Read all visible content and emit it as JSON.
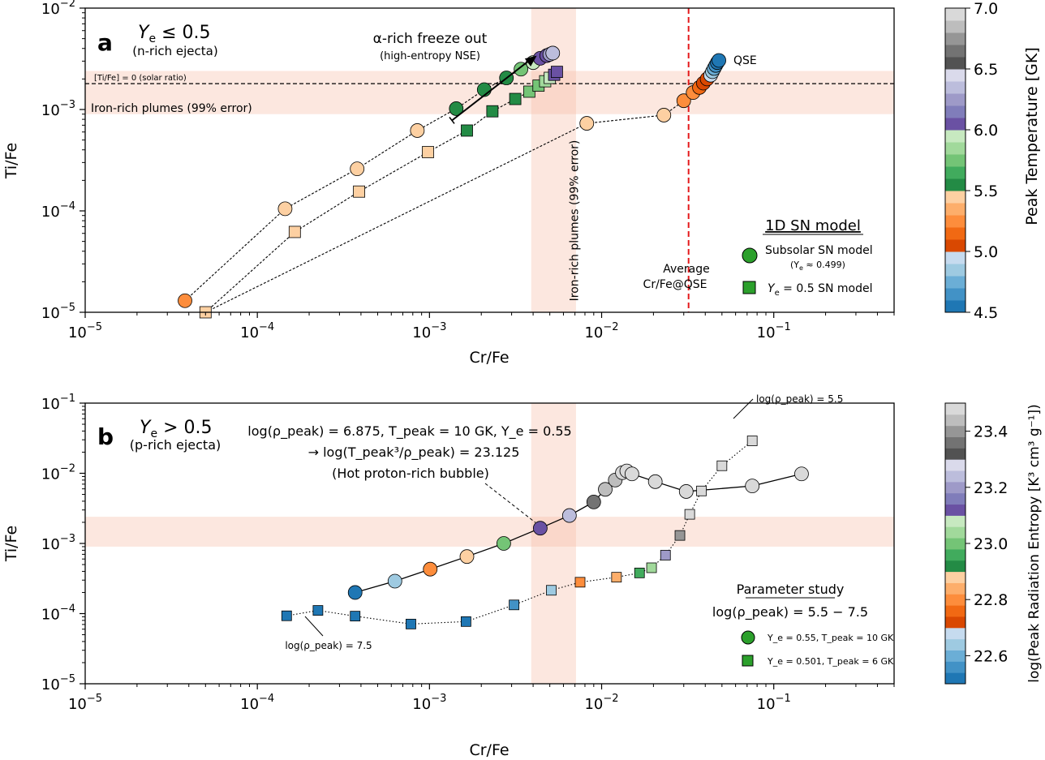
{
  "colors": {
    "band": "#f7b9a4",
    "red": "#e41a1c",
    "sn_green": "#2ca02c",
    "temp_scale": [
      "#1f77b4",
      "#4292c6",
      "#6baed6",
      "#9ecae1",
      "#c6dbef",
      "#d94801",
      "#f16913",
      "#fd8d3c",
      "#fdae6b",
      "#fdd0a2",
      "#238b45",
      "#41ab5d",
      "#74c476",
      "#a1d99b",
      "#c7e9c0",
      "#6a51a3",
      "#807dba",
      "#9e9ac8",
      "#bcbddc",
      "#dadaeb",
      "#525252",
      "#737373",
      "#969696",
      "#bdbdbd",
      "#d9d9d9"
    ],
    "entropy_scale": [
      "#1f77b4",
      "#4292c6",
      "#6baed6",
      "#9ecae1",
      "#c6dbef",
      "#d94801",
      "#f16913",
      "#fd8d3c",
      "#fdae6b",
      "#fdd0a2",
      "#238b45",
      "#41ab5d",
      "#74c476",
      "#a1d99b",
      "#c7e9c0",
      "#6a51a3",
      "#807dba",
      "#9e9ac8",
      "#bcbddc",
      "#dadaeb",
      "#525252",
      "#737373",
      "#969696",
      "#bdbdbd",
      "#d9d9d9"
    ]
  },
  "chart_data": [
    {
      "type": "scatter",
      "panel_label": "a",
      "xlabel": "Cr/Fe",
      "ylabel": "Ti/Fe",
      "xlim": [
        1e-05,
        0.5
      ],
      "ylim": [
        1e-05,
        0.01
      ],
      "x_ticks": [
        "10^-5",
        "10^-4",
        "10^-3",
        "10^-2",
        "10^-1"
      ],
      "y_ticks": [
        "10^-5",
        "10^-4",
        "10^-3",
        "10^-2"
      ],
      "ye_label": "Y",
      "ye_sub": "e",
      "ye_relation": " ≤ 0.5",
      "ejecta_label": "(n-rich ejecta)",
      "freeze_title": "α-rich freeze out",
      "freeze_sub": "(high-entropy NSE)",
      "freeze_arrow": {
        "x_from": 0.00135,
        "y_from": 0.00078,
        "x_to": 0.0042,
        "y_to": 0.0034
      },
      "solar_label": "[Ti/Fe] = 0 (solar ratio)",
      "solar_y": 0.0018,
      "horizontal_band": {
        "label": "Iron-rich plumes (99% error)",
        "y_range": [
          0.0009,
          0.0024
        ]
      },
      "vertical_band": {
        "label": "Iron-rich plumes (99% error)",
        "x_range": [
          0.0039,
          0.0071
        ]
      },
      "qse_line_x": 0.032,
      "qse_label_1": "Average",
      "qse_label_2": "Cr/Fe@QSE",
      "qse_tag": "QSE",
      "legend_title": "1D SN model",
      "legend_circle_label": "Subsolar SN model",
      "legend_circle_note": "(Y",
      "legend_circle_note_sub": "e",
      "legend_circle_note_tail": " ≈ 0.499)",
      "legend_square_label_head": "Y",
      "legend_square_label_sub": "e",
      "legend_square_label_tail": " = 0.5 SN model",
      "colorbar": {
        "label": "Peak Temperature [GK]",
        "min": 4.5,
        "max": 7.0,
        "ticks": [
          "4.5",
          "5.0",
          "5.5",
          "6.0",
          "6.5",
          "7.0"
        ]
      },
      "series": [
        {
          "name": "Subsolar SN model (circles)",
          "marker": "circle",
          "points": [
            [
              3.8e-05,
              1.3e-05,
              5.2
            ],
            [
              0.000145,
              0.000105,
              5.4
            ],
            [
              0.00038,
              0.00026,
              5.4
            ],
            [
              0.00085,
              0.00062,
              5.4
            ],
            [
              0.00143,
              0.00102,
              5.6
            ],
            [
              0.00208,
              0.00157,
              5.6
            ],
            [
              0.0028,
              0.00205,
              5.6
            ],
            [
              0.0034,
              0.0025,
              5.8
            ],
            [
              0.004,
              0.0029,
              5.9
            ],
            [
              0.0044,
              0.0032,
              6.0
            ],
            [
              0.0048,
              0.0034,
              6.1
            ],
            [
              0.005,
              0.0035,
              6.2
            ],
            [
              0.0052,
              0.0036,
              6.3
            ]
          ]
        },
        {
          "name": "Ye = 0.5 SN model (squares, low branch)",
          "marker": "square",
          "points": [
            [
              5e-05,
              1e-05,
              5.4
            ],
            [
              0.000165,
              6.2e-05,
              5.4
            ],
            [
              0.00039,
              0.000155,
              5.4
            ],
            [
              0.00098,
              0.00038,
              5.4
            ],
            [
              0.00165,
              0.00062,
              5.6
            ],
            [
              0.00232,
              0.00096,
              5.6
            ],
            [
              0.00315,
              0.00127,
              5.6
            ],
            [
              0.0038,
              0.0015,
              5.7
            ],
            [
              0.0043,
              0.00172,
              5.8
            ],
            [
              0.0047,
              0.0019,
              5.85
            ],
            [
              0.005,
              0.00205,
              5.9
            ],
            [
              0.0053,
              0.0022,
              6.0
            ],
            [
              0.0055,
              0.00235,
              6.1
            ]
          ]
        },
        {
          "name": "Ye = 0.5 SN model (circles, QSE branch)",
          "marker": "circle",
          "points": [
            [
              0.0082,
              0.00073,
              5.4
            ],
            [
              0.023,
              0.00088,
              5.4
            ],
            [
              0.03,
              0.00122,
              5.3
            ],
            [
              0.034,
              0.00147,
              5.2
            ],
            [
              0.037,
              0.00165,
              5.15
            ],
            [
              0.039,
              0.00182,
              5.1
            ],
            [
              0.041,
              0.002,
              5.05
            ],
            [
              0.043,
              0.00218,
              4.95
            ],
            [
              0.044,
              0.00236,
              4.85
            ],
            [
              0.045,
              0.00254,
              4.75
            ],
            [
              0.046,
              0.00272,
              4.65
            ],
            [
              0.047,
              0.0029,
              4.6
            ],
            [
              0.048,
              0.00305,
              4.55
            ]
          ]
        },
        {
          "name": "extension line",
          "marker": "none",
          "points": [
            [
              5e-05,
              1e-05
            ],
            [
              0.0082,
              0.00073
            ]
          ]
        }
      ]
    },
    {
      "type": "scatter",
      "panel_label": "b",
      "xlabel": "Cr/Fe",
      "ylabel": "Ti/Fe",
      "xlim": [
        1e-05,
        0.5
      ],
      "ylim": [
        1e-05,
        0.1
      ],
      "x_ticks": [
        "10^-5",
        "10^-4",
        "10^-3",
        "10^-2",
        "10^-1"
      ],
      "y_ticks": [
        "10^-5",
        "10^-4",
        "10^-3",
        "10^-2",
        "10^-1"
      ],
      "ye_label": "Y",
      "ye_sub": "e",
      "ye_relation": " > 0.5",
      "ejecta_label": "(p-rich ejecta)",
      "annotation_line1": "log(ρ_peak) = 6.875, T_peak = 10 GK, Y_e = 0.55",
      "annotation_line2": "→ log(T_peak³/ρ_peak) = 23.125",
      "annotation_line3": "(Hot proton-rich bubble)",
      "annotation_target": {
        "x": 0.0044,
        "y": 0.00165
      },
      "label_top": "log(ρ_peak) = 5.5",
      "label_bottom": "log(ρ_peak) = 7.5",
      "horizontal_band": {
        "y_range": [
          0.0009,
          0.0024
        ]
      },
      "vertical_band": {
        "x_range": [
          0.0039,
          0.0071
        ]
      },
      "legend_title": "Parameter study",
      "legend_subtitle": "log(ρ_peak) = 5.5 − 7.5",
      "legend_circle_label": "Y_e = 0.55,    T_peak = 10 GK",
      "legend_square_label": "Y_e = 0.501,   T_peak = 6 GK",
      "colorbar": {
        "label": "log(Peak Radiation Entropy [K³ cm³ g⁻¹])",
        "min": 22.5,
        "max": 23.5,
        "ticks": [
          "22.6",
          "22.8",
          "23.0",
          "23.2",
          "23.4"
        ]
      },
      "series": [
        {
          "name": "Ye = 0.55, Tpeak = 10 GK",
          "marker": "circle",
          "line": "solid",
          "points": [
            [
              0.00037,
              0.0002,
              22.5
            ],
            [
              0.00063,
              0.00029,
              22.65
            ],
            [
              0.00101,
              0.00043,
              22.8
            ],
            [
              0.00165,
              0.00065,
              22.9
            ],
            [
              0.0027,
              0.001,
              23.0
            ],
            [
              0.0044,
              0.00165,
              23.125
            ],
            [
              0.0065,
              0.0025,
              23.25
            ],
            [
              0.009,
              0.0039,
              23.35
            ],
            [
              0.0105,
              0.0059,
              23.42
            ],
            [
              0.012,
              0.008,
              23.45
            ],
            [
              0.0132,
              0.0102,
              23.48
            ],
            [
              0.014,
              0.0108,
              23.5
            ],
            [
              0.015,
              0.0098,
              23.5
            ],
            [
              0.0205,
              0.0076,
              23.5
            ],
            [
              0.031,
              0.0055,
              23.5
            ],
            [
              0.075,
              0.0066,
              23.5
            ],
            [
              0.145,
              0.0098,
              23.5
            ]
          ]
        },
        {
          "name": "Ye = 0.501, Tpeak = 6 GK",
          "marker": "square",
          "line": "dotted",
          "points": [
            [
              0.000148,
              9.3e-05,
              22.5
            ],
            [
              0.000225,
              0.000111,
              22.5
            ],
            [
              0.00037,
              9.2e-05,
              22.5
            ],
            [
              0.00078,
              7.1e-05,
              22.5
            ],
            [
              0.00163,
              7.7e-05,
              22.5
            ],
            [
              0.0031,
              0.000133,
              22.55
            ],
            [
              0.0051,
              0.000215,
              22.65
            ],
            [
              0.0075,
              0.00028,
              22.8
            ],
            [
              0.0122,
              0.00033,
              22.85
            ],
            [
              0.0166,
              0.00038,
              22.95
            ],
            [
              0.0195,
              0.00045,
              23.05
            ],
            [
              0.0235,
              0.00068,
              23.2
            ],
            [
              0.0285,
              0.0013,
              23.4
            ],
            [
              0.0325,
              0.0026,
              23.5
            ],
            [
              0.038,
              0.0056,
              23.5
            ],
            [
              0.05,
              0.0128,
              23.5
            ],
            [
              0.075,
              0.029,
              23.5
            ]
          ]
        }
      ]
    }
  ]
}
